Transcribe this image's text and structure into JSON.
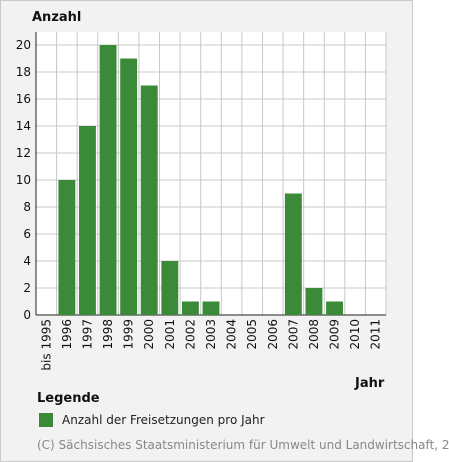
{
  "chart_data": {
    "type": "bar",
    "ylabel": "Anzahl",
    "xlabel": "Jahr",
    "categories": [
      "bis 1995",
      "1996",
      "1997",
      "1998",
      "1999",
      "2000",
      "2001",
      "2002",
      "2003",
      "2004",
      "2005",
      "2006",
      "2007",
      "2008",
      "2009",
      "2010",
      "2011"
    ],
    "series": [
      {
        "name": "Anzahl der Freisetzungen pro Jahr",
        "values": [
          0,
          10,
          14,
          20,
          19,
          17,
          4,
          1,
          1,
          0,
          0,
          0,
          9,
          2,
          1,
          0,
          0
        ]
      }
    ],
    "ylim": [
      0,
      20
    ],
    "yticks": [
      0,
      2,
      4,
      6,
      8,
      10,
      12,
      14,
      16,
      18,
      20
    ],
    "grid": true,
    "bar_color": "#3a8a3a"
  },
  "legend": {
    "title": "Legende",
    "items": [
      {
        "label": "Anzahl der Freisetzungen pro Jahr",
        "color": "#3a8a3a"
      }
    ]
  },
  "footer": {
    "copyright": "(C) Sächsisches Staatsministerium für Umwelt und Landwirtschaft, 2"
  }
}
